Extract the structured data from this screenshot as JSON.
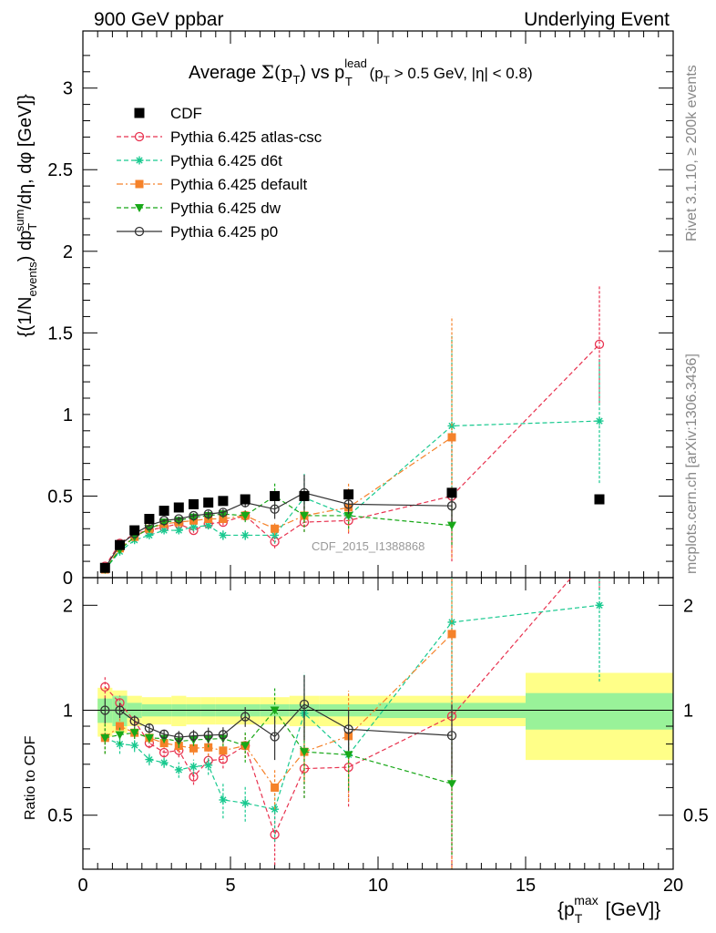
{
  "header": {
    "left": "900 GeV ppbar",
    "right": "Underlying Event",
    "side_version": "Rivet 3.1.10, ≥ 200k events",
    "side_source": "mcplots.cern.ch [arXiv:1306.3436]",
    "watermark": "CDF_2015_I1388868"
  },
  "main_title": {
    "pre": "Average ",
    "sym": "Σ(p",
    "sub1": "T",
    "mid": ") vs p",
    "sup": "lead",
    "sub2": "T",
    "post": " (p",
    "sub3": "T",
    "tail": " > 0.5 GeV, |η| < 0.8)"
  },
  "axes": {
    "ylabel_main": "{(1/N_events) dp_T^sum/dη, dφ [GeV]}",
    "ylabel_ratio": "Ratio to CDF",
    "xlabel": "{p_T^max [GeV]}",
    "x_ticks": [
      "0",
      "5",
      "10",
      "15",
      "20"
    ],
    "y_ticks_main": [
      "0",
      "0.5",
      "1",
      "1.5",
      "2",
      "2.5",
      "3"
    ],
    "y_ticks_ratio": [
      "0.5",
      "1",
      "2"
    ]
  },
  "legend": [
    {
      "label": "CDF",
      "color": "#000000",
      "marker": "square"
    },
    {
      "label": "Pythia 6.425 atlas-csc",
      "color": "#e8324f",
      "marker": "open-circle"
    },
    {
      "label": "Pythia 6.425 d6t",
      "color": "#18c98f",
      "marker": "star"
    },
    {
      "label": "Pythia 6.425 default",
      "color": "#f5822a",
      "marker": "filled-square"
    },
    {
      "label": "Pythia 6.425 dw",
      "color": "#18a818",
      "marker": "triangle-down"
    },
    {
      "label": "Pythia 6.425 p0",
      "color": "#333333",
      "marker": "open-circle"
    }
  ],
  "chart_data": {
    "type": "scatter",
    "xlim": [
      0,
      20
    ],
    "ylim_main": [
      0,
      3.35
    ],
    "ylim_ratio_log": [
      0.35,
      2.4
    ],
    "data": {
      "x": [
        0.75,
        1.25,
        1.75,
        2.25,
        2.75,
        3.25,
        3.75,
        4.25,
        4.75,
        5.5,
        6.5,
        7.5,
        9.0,
        12.5,
        17.5
      ],
      "y": [
        0.06,
        0.2,
        0.29,
        0.36,
        0.41,
        0.43,
        0.45,
        0.46,
        0.47,
        0.48,
        0.5,
        0.5,
        0.51,
        0.52,
        0.48
      ],
      "band_edges": [
        0.5,
        1.0,
        1.5,
        2.0,
        2.5,
        3.0,
        3.5,
        4.0,
        4.5,
        5.0,
        6.0,
        7.0,
        8.0,
        10.0,
        15.0,
        20.0
      ],
      "band_stat": [
        0.08,
        0.1,
        0.05,
        0.04,
        0.04,
        0.04,
        0.04,
        0.04,
        0.04,
        0.04,
        0.04,
        0.04,
        0.04,
        0.05,
        0.12
      ],
      "band_total": [
        0.16,
        0.14,
        0.1,
        0.09,
        0.09,
        0.1,
        0.09,
        0.09,
        0.09,
        0.09,
        0.09,
        0.1,
        0.1,
        0.1,
        0.28
      ]
    },
    "series": [
      {
        "name": "Pythia 6.425 atlas-csc",
        "x": [
          0.75,
          1.25,
          1.75,
          2.25,
          2.75,
          3.25,
          3.75,
          4.25,
          4.75,
          5.5,
          6.5,
          7.5,
          9.0,
          12.5,
          17.5
        ],
        "y": [
          0.07,
          0.21,
          0.27,
          0.29,
          0.31,
          0.33,
          0.29,
          0.33,
          0.34,
          0.38,
          0.22,
          0.34,
          0.35,
          0.5,
          1.43
        ],
        "err": [
          0.005,
          0.01,
          0.01,
          0.01,
          0.01,
          0.015,
          0.015,
          0.02,
          0.02,
          0.03,
          0.04,
          0.06,
          0.08,
          0.4,
          0.36
        ]
      },
      {
        "name": "Pythia 6.425 d6t",
        "x": [
          0.75,
          1.25,
          1.75,
          2.25,
          2.75,
          3.25,
          3.75,
          4.25,
          4.75,
          5.5,
          6.5,
          7.5,
          9.0,
          12.5,
          17.5
        ],
        "y": [
          0.05,
          0.16,
          0.23,
          0.26,
          0.29,
          0.29,
          0.31,
          0.32,
          0.26,
          0.26,
          0.26,
          0.49,
          0.38,
          0.93,
          0.96
        ],
        "err": [
          0.005,
          0.01,
          0.01,
          0.01,
          0.01,
          0.015,
          0.015,
          0.02,
          0.03,
          0.03,
          0.05,
          0.15,
          0.08,
          0.55,
          0.38
        ]
      },
      {
        "name": "Pythia 6.425 default",
        "x": [
          0.75,
          1.25,
          1.75,
          2.25,
          2.75,
          3.25,
          3.75,
          4.25,
          4.75,
          5.5,
          6.5,
          7.5,
          9.0,
          12.5
        ],
        "y": [
          0.05,
          0.18,
          0.25,
          0.3,
          0.33,
          0.34,
          0.35,
          0.36,
          0.36,
          0.38,
          0.3,
          0.38,
          0.43,
          0.86
        ],
        "err": [
          0.005,
          0.01,
          0.01,
          0.01,
          0.01,
          0.015,
          0.015,
          0.02,
          0.02,
          0.03,
          0.04,
          0.07,
          0.15,
          0.74
        ]
      },
      {
        "name": "Pythia 6.425 dw",
        "x": [
          0.75,
          1.25,
          1.75,
          2.25,
          2.75,
          3.25,
          3.75,
          4.25,
          4.75,
          5.5,
          6.5,
          7.5,
          9.0,
          12.5
        ],
        "y": [
          0.05,
          0.17,
          0.25,
          0.3,
          0.34,
          0.35,
          0.37,
          0.38,
          0.39,
          0.38,
          0.5,
          0.38,
          0.38,
          0.32
        ],
        "err": [
          0.005,
          0.01,
          0.01,
          0.01,
          0.01,
          0.015,
          0.015,
          0.02,
          0.02,
          0.04,
          0.08,
          0.1,
          0.08,
          0.12
        ]
      },
      {
        "name": "Pythia 6.425 p0",
        "x": [
          0.75,
          1.25,
          1.75,
          2.25,
          2.75,
          3.25,
          3.75,
          4.25,
          4.75,
          5.5,
          6.5,
          7.5,
          9.0,
          12.5
        ],
        "y": [
          0.06,
          0.2,
          0.27,
          0.32,
          0.35,
          0.36,
          0.38,
          0.39,
          0.4,
          0.46,
          0.42,
          0.52,
          0.45,
          0.44
        ],
        "err": [
          0.005,
          0.01,
          0.01,
          0.01,
          0.01,
          0.015,
          0.015,
          0.02,
          0.02,
          0.03,
          0.06,
          0.11,
          0.06,
          0.1
        ]
      }
    ]
  }
}
